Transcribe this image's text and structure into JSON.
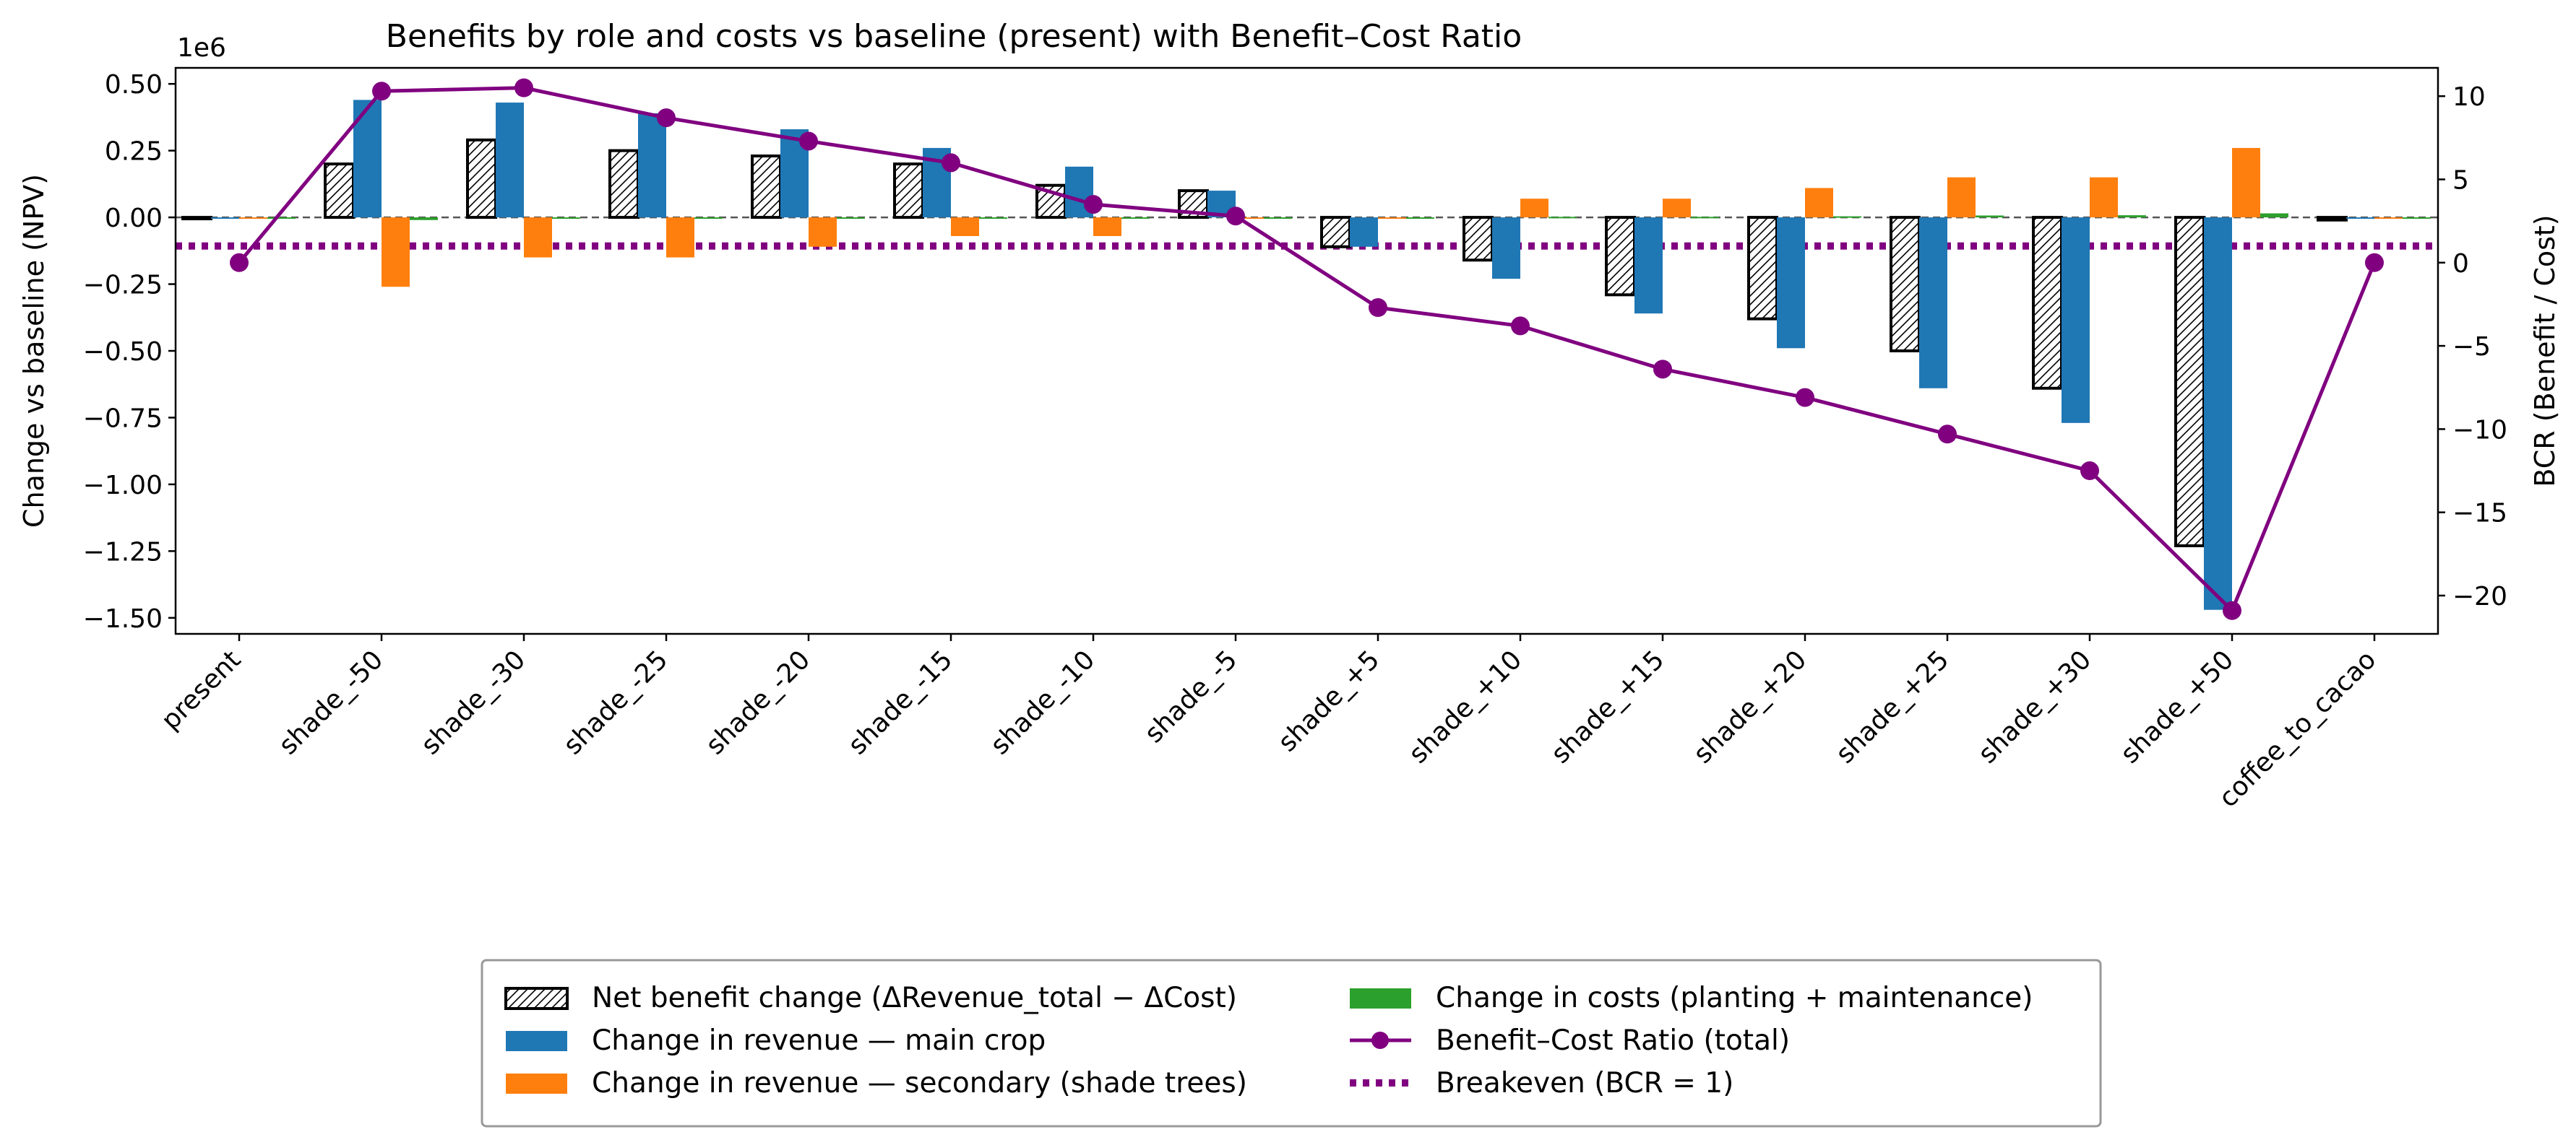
{
  "chart_data": {
    "type": "bar",
    "title": "Benefits by role and costs vs baseline (present) with Benefit–Cost Ratio",
    "ylabel": "Change vs baseline (NPV)",
    "ylabel_right": "BCR (Benefit / Cost)",
    "y_offset_label": "1e6",
    "ylim": [
      -1.56,
      0.56
    ],
    "y_ticks": [
      -1.5,
      -1.25,
      -1.0,
      -0.75,
      -0.5,
      -0.25,
      0.0,
      0.25,
      0.5
    ],
    "y_tick_labels": [
      "−1.50",
      "−1.25",
      "−1.00",
      "−0.75",
      "−0.50",
      "−0.25",
      "0.00",
      "0.25",
      "0.50"
    ],
    "y2lim": [
      -22.3,
      11.7
    ],
    "y2_ticks": [
      -20,
      -15,
      -10,
      -5,
      0,
      5,
      10
    ],
    "y2_tick_labels": [
      "−20",
      "−15",
      "−10",
      "−5",
      "0",
      "5",
      "10"
    ],
    "categories": [
      "present",
      "shade_-50",
      "shade_-30",
      "shade_-25",
      "shade_-20",
      "shade_-15",
      "shade_-10",
      "shade_-5",
      "shade_+5",
      "shade_+10",
      "shade_+15",
      "shade_+20",
      "shade_+25",
      "shade_+30",
      "shade_+50",
      "coffee_to_cacao"
    ],
    "series": [
      {
        "name": "Net benefit change (ΔRevenue_total − ΔCost)",
        "kind": "bar-hatched",
        "color": "#ffffff",
        "values": [
          0,
          0.2,
          0.29,
          0.25,
          0.23,
          0.2,
          0.12,
          0.1,
          -0.11,
          -0.16,
          -0.29,
          -0.38,
          -0.5,
          -0.64,
          -1.23,
          -0.01
        ]
      },
      {
        "name": "Change in revenue — main crop",
        "kind": "bar",
        "color": "#1f77b4",
        "values": [
          0,
          0.44,
          0.43,
          0.39,
          0.33,
          0.26,
          0.19,
          0.1,
          -0.11,
          -0.23,
          -0.36,
          -0.49,
          -0.64,
          -0.77,
          -1.47,
          0
        ]
      },
      {
        "name": "Change in revenue — secondary (shade trees)",
        "kind": "bar",
        "color": "#ff7f0e",
        "values": [
          0,
          -0.26,
          -0.15,
          -0.15,
          -0.11,
          -0.07,
          -0.07,
          0,
          0,
          0.07,
          0.07,
          0.11,
          0.15,
          0.15,
          0.26,
          0
        ]
      },
      {
        "name": "Change in costs (planting + maintenance)",
        "kind": "bar",
        "color": "#2ca02c",
        "values": [
          0,
          -0.01,
          -0.005,
          -0.005,
          -0.003,
          -0.002,
          -0.001,
          0,
          0,
          0.002,
          0.002,
          0.004,
          0.007,
          0.008,
          0.015,
          0
        ]
      },
      {
        "name": "Benefit–Cost Ratio (total)",
        "kind": "line",
        "axis": "right",
        "color": "#800080",
        "values": [
          0,
          10.3,
          10.5,
          8.7,
          7.3,
          6.0,
          3.5,
          2.8,
          -2.7,
          -3.8,
          -6.4,
          -8.1,
          -10.3,
          -12.5,
          -20.9,
          0
        ]
      }
    ],
    "breakeven": {
      "name": "Breakeven (BCR = 1)",
      "value": 1,
      "color": "#800080"
    },
    "grid": false,
    "legend_position": "bottom-center"
  }
}
